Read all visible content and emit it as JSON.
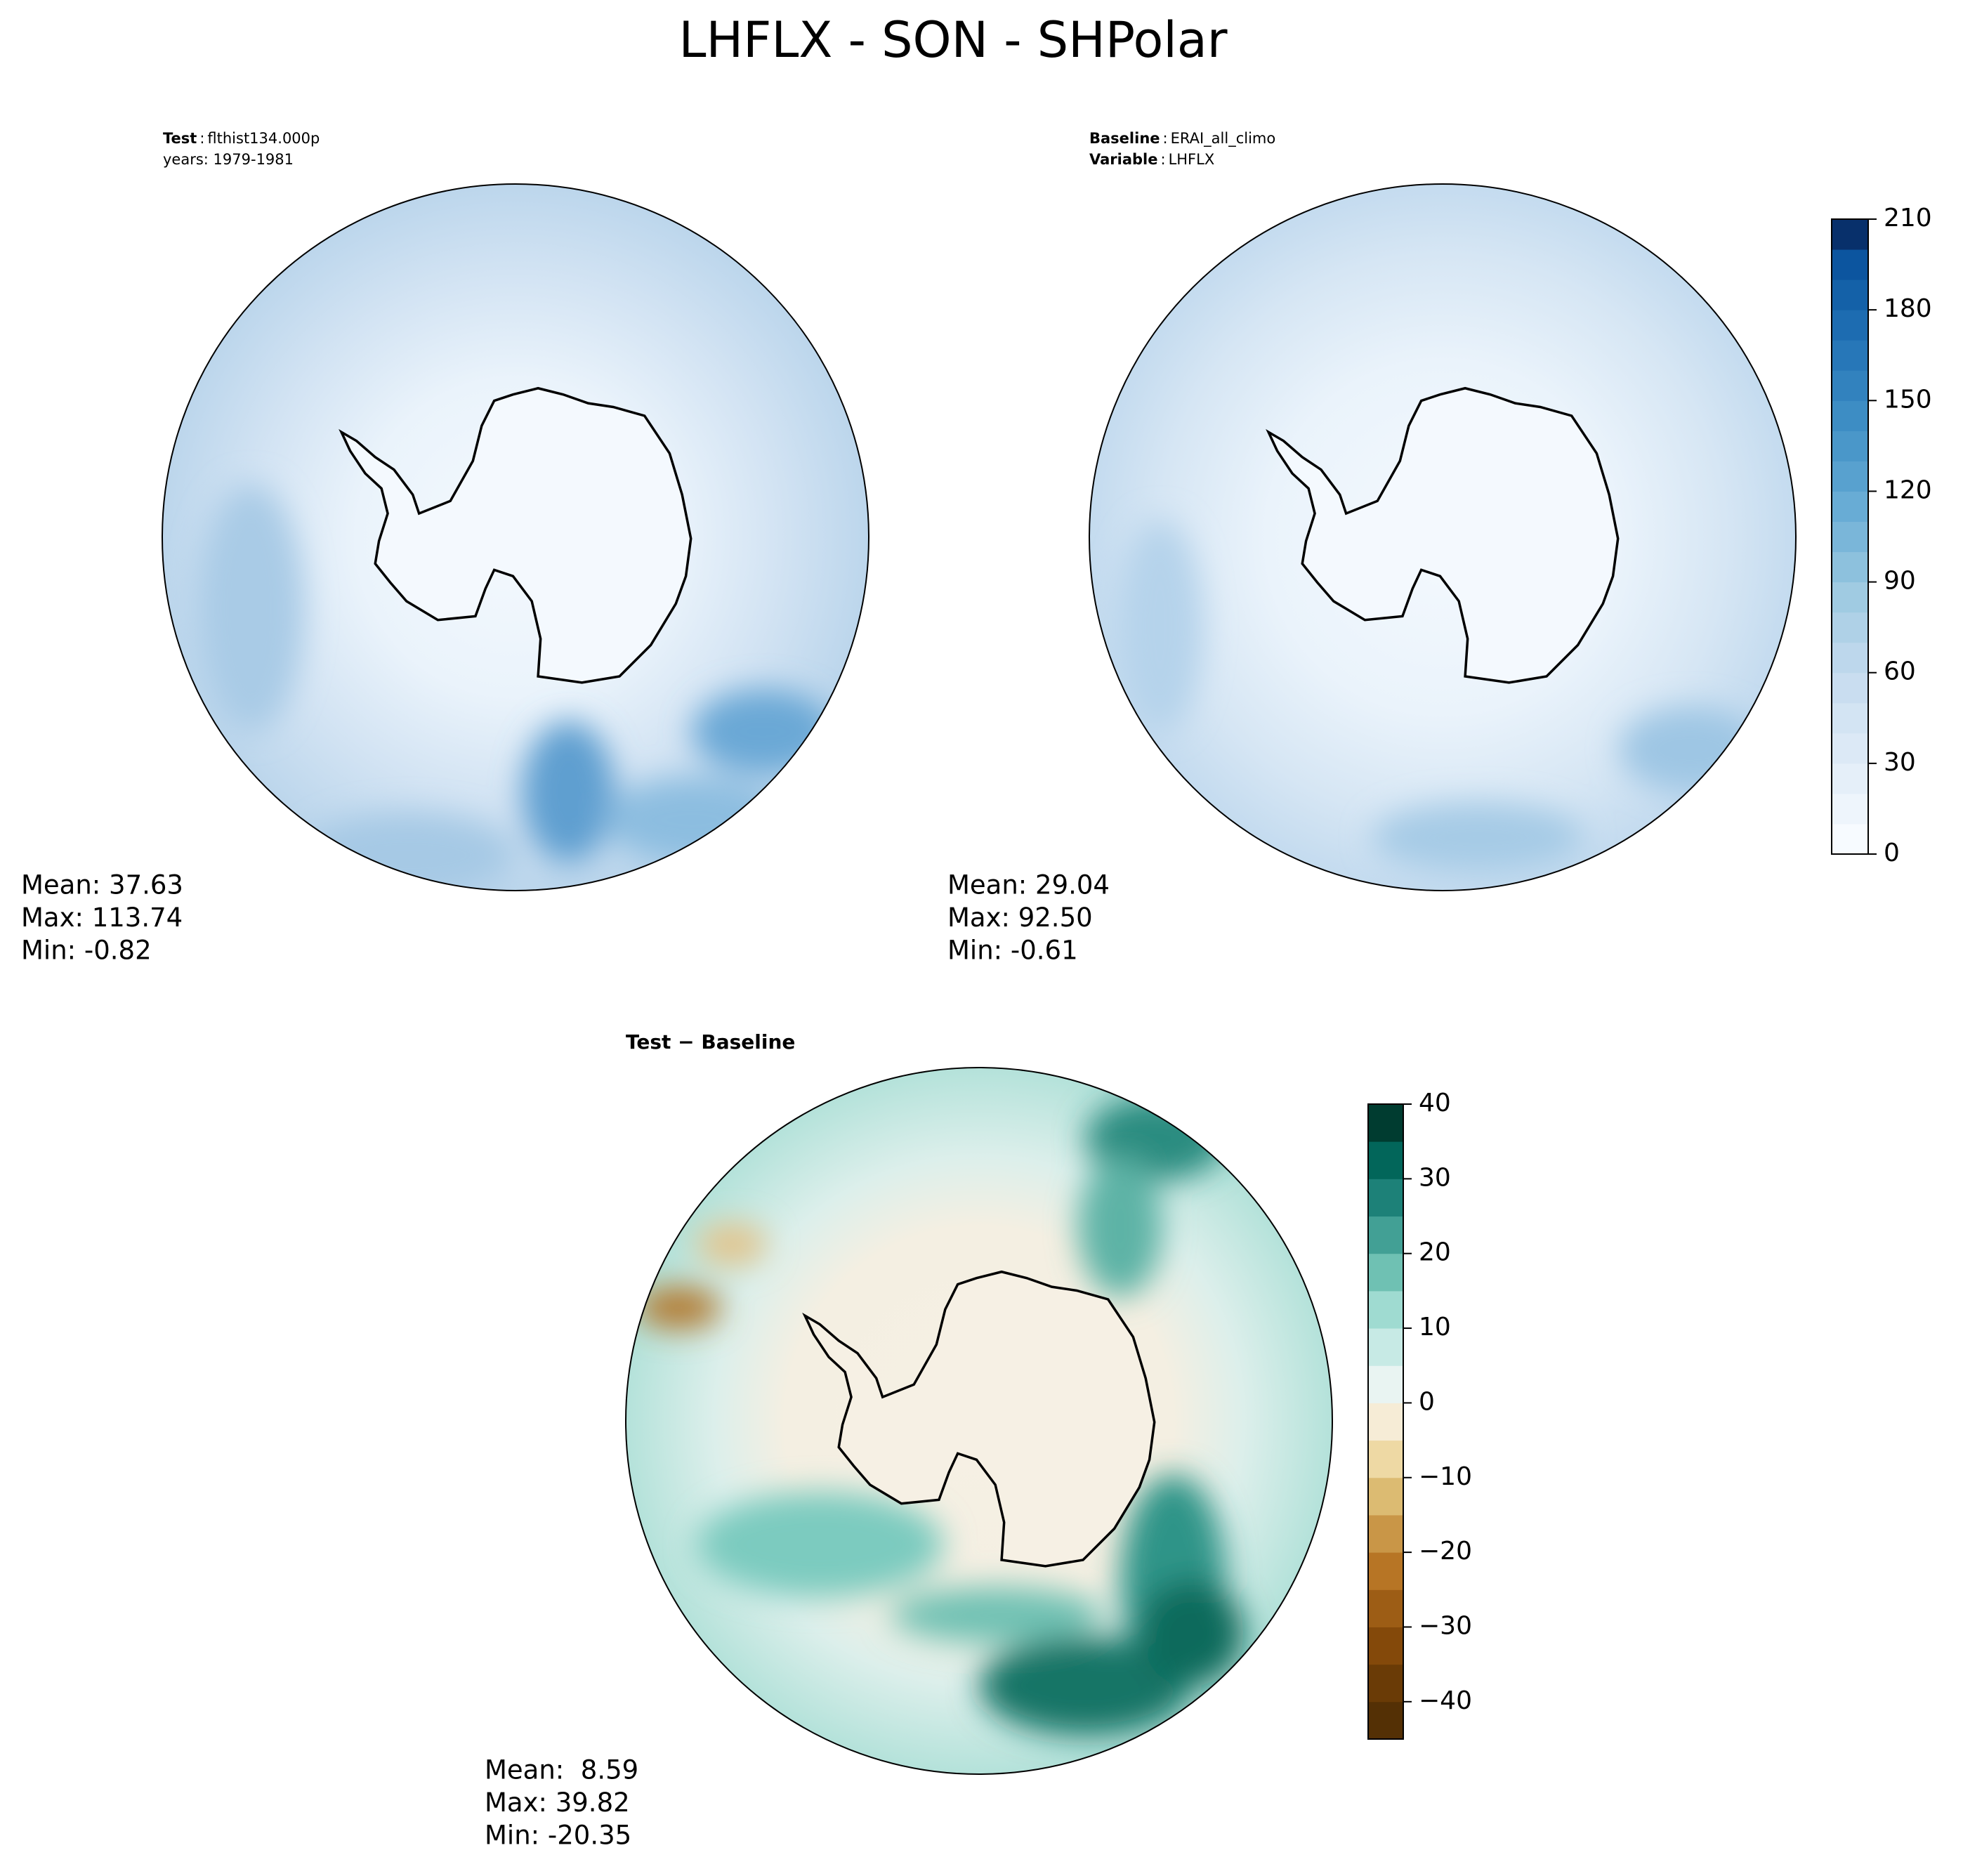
{
  "title": "LHFLX - SON - SHPolar",
  "panels": [
    {
      "lines": [
        {
          "name": "Test",
          "sep": ":",
          "value": "flthist134.000p"
        },
        {
          "value": "years: 1979-1981"
        }
      ],
      "stats": [
        "Mean: 37.63",
        "Max: 113.74",
        "Min: -0.82"
      ]
    },
    {
      "lines": [
        {
          "name": "Baseline",
          "sep": ":",
          "value": "ERAI_all_climo"
        },
        {
          "name": "Variable",
          "sep": ":",
          "value": "LHFLX"
        }
      ],
      "stats": [
        "Mean: 29.04",
        "Max: 92.50",
        "Min: -0.61"
      ]
    },
    {
      "title": "Test − Baseline",
      "stats": [
        "Mean:  8.59",
        "Max: 39.82",
        "Min: -20.35"
      ]
    }
  ],
  "colorbars": [
    {
      "lim": [
        0,
        210
      ],
      "ticks": [
        0,
        30,
        60,
        90,
        120,
        150,
        180,
        210
      ],
      "colors": [
        "#f7fbff",
        "#eef5fc",
        "#e5eff9",
        "#dce9f6",
        "#d3e4f3",
        "#c9ddf0",
        "#bdd7ec",
        "#afd1e7",
        "#a0cbe2",
        "#8dc1dd",
        "#7ab6d9",
        "#68acd5",
        "#58a1cf",
        "#4a97c9",
        "#3d8dc4",
        "#3282be",
        "#2777b8",
        "#1d6cb1",
        "#1461a8",
        "#0c559f",
        "#08306b"
      ]
    },
    {
      "lim": [
        -45,
        40
      ],
      "ticks": [
        {
          "value": -40,
          "label": "−40"
        },
        {
          "value": -30,
          "label": "−30"
        },
        {
          "value": -20,
          "label": "−20"
        },
        {
          "value": -10,
          "label": "−10"
        },
        0,
        10,
        20,
        30,
        40
      ],
      "colors": [
        "#543005",
        "#6a3b06",
        "#84490a",
        "#9d5d15",
        "#b77525",
        "#c99647",
        "#dcbb72",
        "#eed9a4",
        "#f6ecd6",
        "#e9f4f2",
        "#c7eae5",
        "#9fdbd1",
        "#6fc1b3",
        "#42a095",
        "#1d8178",
        "#02665a",
        "#003c30"
      ]
    }
  ]
}
